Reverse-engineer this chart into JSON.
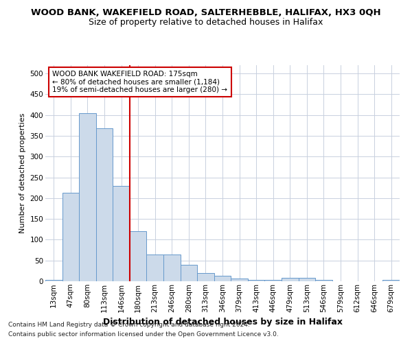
{
  "title": "WOOD BANK, WAKEFIELD ROAD, SALTERHEBBLE, HALIFAX, HX3 0QH",
  "subtitle": "Size of property relative to detached houses in Halifax",
  "xlabel": "Distribution of detached houses by size in Halifax",
  "ylabel": "Number of detached properties",
  "categories": [
    "13sqm",
    "47sqm",
    "80sqm",
    "113sqm",
    "146sqm",
    "180sqm",
    "213sqm",
    "246sqm",
    "280sqm",
    "313sqm",
    "346sqm",
    "379sqm",
    "413sqm",
    "446sqm",
    "479sqm",
    "513sqm",
    "546sqm",
    "579sqm",
    "612sqm",
    "646sqm",
    "679sqm"
  ],
  "values": [
    4,
    213,
    405,
    368,
    230,
    120,
    65,
    65,
    39,
    19,
    13,
    7,
    4,
    4,
    8,
    8,
    4,
    0,
    0,
    0,
    4
  ],
  "bar_color": "#ccdaea",
  "bar_edge_color": "#6699cc",
  "vline_x_index": 5,
  "vline_color": "#cc0000",
  "annotation_text": "WOOD BANK WAKEFIELD ROAD: 175sqm\n← 80% of detached houses are smaller (1,184)\n19% of semi-detached houses are larger (280) →",
  "annotation_box_color": "#ffffff",
  "annotation_box_edge": "#cc0000",
  "ylim": [
    0,
    520
  ],
  "yticks": [
    0,
    50,
    100,
    150,
    200,
    250,
    300,
    350,
    400,
    450,
    500
  ],
  "footnote1": "Contains HM Land Registry data © Crown copyright and database right 2024.",
  "footnote2": "Contains public sector information licensed under the Open Government Licence v3.0.",
  "bg_color": "#ffffff",
  "grid_color": "#c8d0de",
  "title_fontsize": 9.5,
  "subtitle_fontsize": 9,
  "xlabel_fontsize": 9,
  "ylabel_fontsize": 8,
  "tick_fontsize": 7.5
}
